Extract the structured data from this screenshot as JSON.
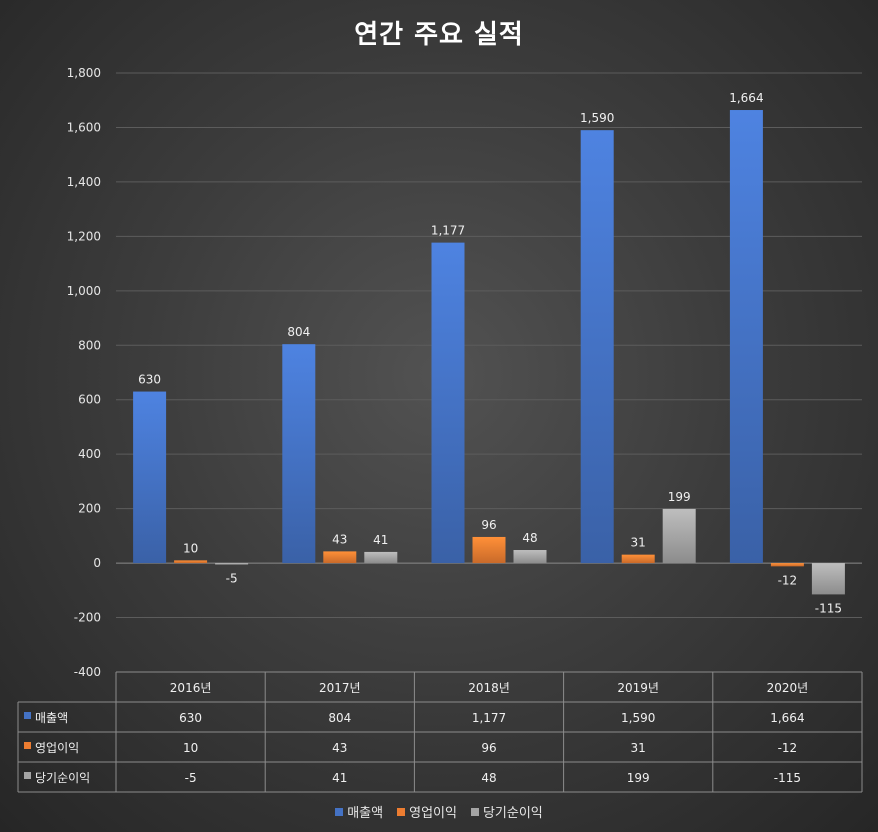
{
  "chart_data": {
    "type": "bar",
    "title": "연간 주요 실적",
    "categories": [
      "2016년",
      "2017년",
      "2018년",
      "2019년",
      "2020년"
    ],
    "series": [
      {
        "name": "매출액",
        "values": [
          630,
          804,
          1177,
          1590,
          1664
        ],
        "labels": [
          "630",
          "804",
          "1,177",
          "1,590",
          "1,664"
        ],
        "color": "#4472c4"
      },
      {
        "name": "영업이익",
        "values": [
          10,
          43,
          96,
          31,
          -12
        ],
        "labels": [
          "10",
          "43",
          "96",
          "31",
          "-12"
        ],
        "color": "#ed7d31"
      },
      {
        "name": "당기순이익",
        "values": [
          -5,
          41,
          48,
          199,
          -115
        ],
        "labels": [
          "-5",
          "41",
          "48",
          "199",
          "-115"
        ],
        "color": "#a5a5a5"
      }
    ],
    "ylim": [
      -400,
      1800
    ],
    "yticks": [
      1800,
      1600,
      1400,
      1200,
      1000,
      800,
      600,
      400,
      200,
      0,
      -200,
      -400
    ],
    "ytick_labels": [
      "1,800",
      "1,600",
      "1,400",
      "1,200",
      "1,000",
      "800",
      "600",
      "400",
      "200",
      "0",
      "-200",
      "-400"
    ],
    "grid": true,
    "legend": "bottom",
    "data_table": true
  }
}
